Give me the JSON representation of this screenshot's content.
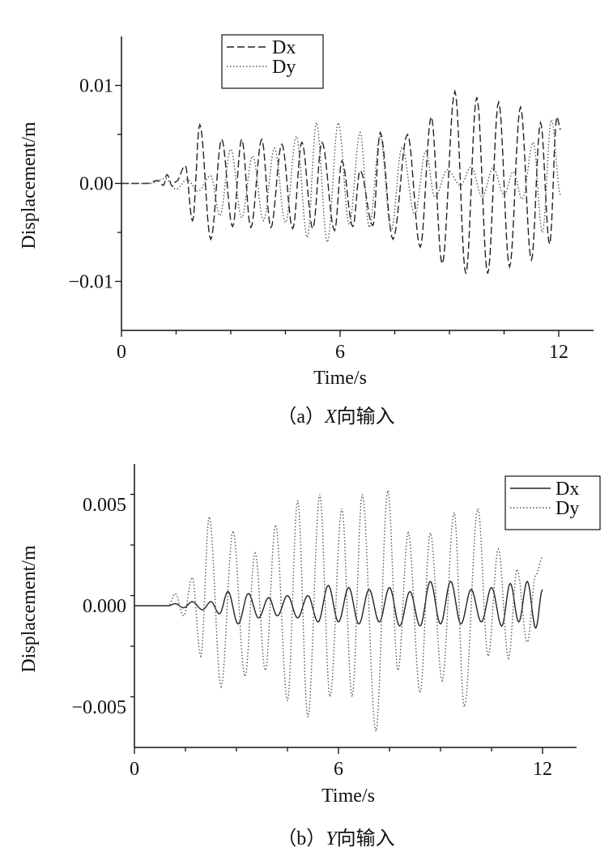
{
  "chart_data": [
    {
      "type": "line",
      "caption_prefix": "（a）",
      "caption_italic": "X",
      "caption_suffix": "向输入",
      "xlabel": "Time/s",
      "ylabel": "Displacement/m",
      "xlim": [
        0,
        13
      ],
      "ylim": [
        -0.015,
        0.015
      ],
      "xticks": [
        0,
        6,
        12
      ],
      "xtick_labels": [
        "0",
        "6",
        "12"
      ],
      "yticks": [
        0.01,
        0.0,
        -0.01
      ],
      "ytick_labels": [
        "0.01",
        "0.00",
        "−0.01"
      ],
      "legend_position": "top-center",
      "grid": false,
      "series": [
        {
          "name": "Dx",
          "style": "dashed",
          "color": "#222222",
          "peaks": [
            [
              0.0,
              0
            ],
            [
              0.7,
              0
            ],
            [
              1.0,
              0.0003
            ],
            [
              1.15,
              -0.0002
            ],
            [
              1.25,
              0.0009
            ],
            [
              1.4,
              -0.0003
            ],
            [
              1.5,
              0.0002
            ],
            [
              1.75,
              0.0018
            ],
            [
              1.95,
              -0.0038
            ],
            [
              2.15,
              0.006
            ],
            [
              2.45,
              -0.0057
            ],
            [
              2.75,
              0.0045
            ],
            [
              3.05,
              -0.0044
            ],
            [
              3.3,
              0.0045
            ],
            [
              3.55,
              -0.0045
            ],
            [
              3.85,
              0.0045
            ],
            [
              4.1,
              -0.0045
            ],
            [
              4.4,
              0.004
            ],
            [
              4.7,
              -0.0046
            ],
            [
              4.95,
              0.0042
            ],
            [
              5.25,
              -0.0046
            ],
            [
              5.5,
              0.0042
            ],
            [
              5.85,
              -0.0048
            ],
            [
              6.05,
              0.0023
            ],
            [
              6.35,
              -0.0044
            ],
            [
              6.55,
              0.0013
            ],
            [
              6.9,
              -0.0043
            ],
            [
              7.1,
              0.0052
            ],
            [
              7.45,
              -0.0057
            ],
            [
              7.85,
              0.005
            ],
            [
              8.2,
              -0.0065
            ],
            [
              8.5,
              0.0068
            ],
            [
              8.8,
              -0.0082
            ],
            [
              9.15,
              0.0094
            ],
            [
              9.45,
              -0.0092
            ],
            [
              9.75,
              0.0088
            ],
            [
              10.05,
              -0.0092
            ],
            [
              10.35,
              0.0083
            ],
            [
              10.65,
              -0.0085
            ],
            [
              10.95,
              0.0078
            ],
            [
              11.25,
              -0.0078
            ],
            [
              11.5,
              0.0062
            ],
            [
              11.75,
              -0.0062
            ],
            [
              11.95,
              0.0068
            ],
            [
              12.05,
              0.0055
            ]
          ]
        },
        {
          "name": "Dy",
          "style": "dotted",
          "color": "#555555",
          "peaks": [
            [
              0.0,
              0
            ],
            [
              0.8,
              0
            ],
            [
              1.2,
              0.0005
            ],
            [
              1.5,
              -0.0006
            ],
            [
              1.8,
              0.0004
            ],
            [
              2.1,
              -0.0008
            ],
            [
              2.45,
              0.0008
            ],
            [
              2.7,
              -0.0033
            ],
            [
              3.0,
              0.0035
            ],
            [
              3.3,
              -0.0035
            ],
            [
              3.6,
              0.0028
            ],
            [
              3.9,
              -0.0038
            ],
            [
              4.2,
              0.0036
            ],
            [
              4.5,
              -0.004
            ],
            [
              4.8,
              0.0048
            ],
            [
              5.1,
              -0.0055
            ],
            [
              5.35,
              0.0062
            ],
            [
              5.65,
              -0.006
            ],
            [
              5.95,
              0.0062
            ],
            [
              6.25,
              -0.0042
            ],
            [
              6.55,
              0.0052
            ],
            [
              6.8,
              -0.0045
            ],
            [
              7.1,
              0.0048
            ],
            [
              7.4,
              -0.0048
            ],
            [
              7.7,
              0.0037
            ],
            [
              8.05,
              -0.0032
            ],
            [
              8.35,
              0.0033
            ],
            [
              8.6,
              -0.0014
            ],
            [
              8.95,
              0.0014
            ],
            [
              9.3,
              -0.0002
            ],
            [
              9.6,
              0.0017
            ],
            [
              9.9,
              -0.0014
            ],
            [
              10.2,
              0.0016
            ],
            [
              10.5,
              -0.0012
            ],
            [
              10.75,
              0.0012
            ],
            [
              11.0,
              -0.0016
            ],
            [
              11.3,
              0.0042
            ],
            [
              11.55,
              -0.005
            ],
            [
              11.8,
              0.0065
            ],
            [
              12.05,
              -0.0012
            ]
          ]
        }
      ]
    },
    {
      "type": "line",
      "caption_prefix": "（b）",
      "caption_italic": "Y",
      "caption_suffix": "向输入",
      "xlabel": "Time/s",
      "ylabel": "Displacement/m",
      "xlim": [
        0,
        12.8
      ],
      "ylim": [
        -0.007,
        0.007
      ],
      "xticks": [
        0,
        6,
        12
      ],
      "xtick_labels": [
        "0",
        "6",
        "12"
      ],
      "yticks": [
        0.005,
        0.0,
        -0.005
      ],
      "ytick_labels": [
        "0.005",
        "0.000",
        "−0.005"
      ],
      "legend_position": "top-right",
      "grid": false,
      "series": [
        {
          "name": "Dx",
          "style": "solid",
          "color": "#222222",
          "peaks": [
            [
              0.0,
              0
            ],
            [
              1.0,
              0
            ],
            [
              1.2,
              0.0001
            ],
            [
              1.45,
              -0.0001
            ],
            [
              1.7,
              0.0002
            ],
            [
              2.0,
              -0.0002
            ],
            [
              2.25,
              0.0002
            ],
            [
              2.5,
              -0.0004
            ],
            [
              2.75,
              0.0007
            ],
            [
              3.05,
              -0.0009
            ],
            [
              3.35,
              0.0006
            ],
            [
              3.65,
              -0.0006
            ],
            [
              3.95,
              0.0004
            ],
            [
              4.2,
              -0.0005
            ],
            [
              4.5,
              0.0005
            ],
            [
              4.8,
              -0.0006
            ],
            [
              5.1,
              0.0005
            ],
            [
              5.4,
              -0.0008
            ],
            [
              5.7,
              0.001
            ],
            [
              6.0,
              -0.0008
            ],
            [
              6.3,
              0.0009
            ],
            [
              6.6,
              -0.0009
            ],
            [
              6.9,
              0.0008
            ],
            [
              7.2,
              -0.0008
            ],
            [
              7.5,
              0.0009
            ],
            [
              7.8,
              -0.001
            ],
            [
              8.1,
              0.0007
            ],
            [
              8.4,
              -0.001
            ],
            [
              8.7,
              0.0012
            ],
            [
              9.0,
              -0.0009
            ],
            [
              9.3,
              0.0012
            ],
            [
              9.6,
              -0.0009
            ],
            [
              9.9,
              0.0008
            ],
            [
              10.2,
              -0.0008
            ],
            [
              10.5,
              0.0009
            ],
            [
              10.8,
              -0.001
            ],
            [
              11.05,
              0.0011
            ],
            [
              11.3,
              -0.0008
            ],
            [
              11.55,
              0.0012
            ],
            [
              11.8,
              -0.0011
            ],
            [
              12.0,
              0.0008
            ]
          ]
        },
        {
          "name": "Dy",
          "style": "dotted",
          "color": "#555555",
          "peaks": [
            [
              0.0,
              0
            ],
            [
              1.0,
              0
            ],
            [
              1.2,
              0.0006
            ],
            [
              1.45,
              -0.0005
            ],
            [
              1.7,
              0.0014
            ],
            [
              1.95,
              -0.0025
            ],
            [
              2.2,
              0.0044
            ],
            [
              2.55,
              -0.004
            ],
            [
              2.9,
              0.0037
            ],
            [
              3.25,
              -0.0035
            ],
            [
              3.55,
              0.0026
            ],
            [
              3.85,
              -0.0032
            ],
            [
              4.15,
              0.004
            ],
            [
              4.5,
              -0.0047
            ],
            [
              4.8,
              0.0052
            ],
            [
              5.1,
              -0.0055
            ],
            [
              5.45,
              0.0055
            ],
            [
              5.75,
              -0.0045
            ],
            [
              6.1,
              0.0048
            ],
            [
              6.4,
              -0.0045
            ],
            [
              6.7,
              0.0055
            ],
            [
              7.1,
              -0.0062
            ],
            [
              7.45,
              0.0057
            ],
            [
              7.75,
              -0.0032
            ],
            [
              8.05,
              0.0036
            ],
            [
              8.4,
              -0.0043
            ],
            [
              8.7,
              0.0036
            ],
            [
              9.05,
              -0.0037
            ],
            [
              9.4,
              0.0046
            ],
            [
              9.7,
              -0.005
            ],
            [
              10.1,
              0.0048
            ],
            [
              10.4,
              -0.0025
            ],
            [
              10.7,
              0.0028
            ],
            [
              11.0,
              -0.0026
            ],
            [
              11.25,
              0.0018
            ],
            [
              11.55,
              -0.0018
            ],
            [
              11.8,
              0.0015
            ],
            [
              12.0,
              0.0024
            ]
          ]
        }
      ]
    }
  ]
}
